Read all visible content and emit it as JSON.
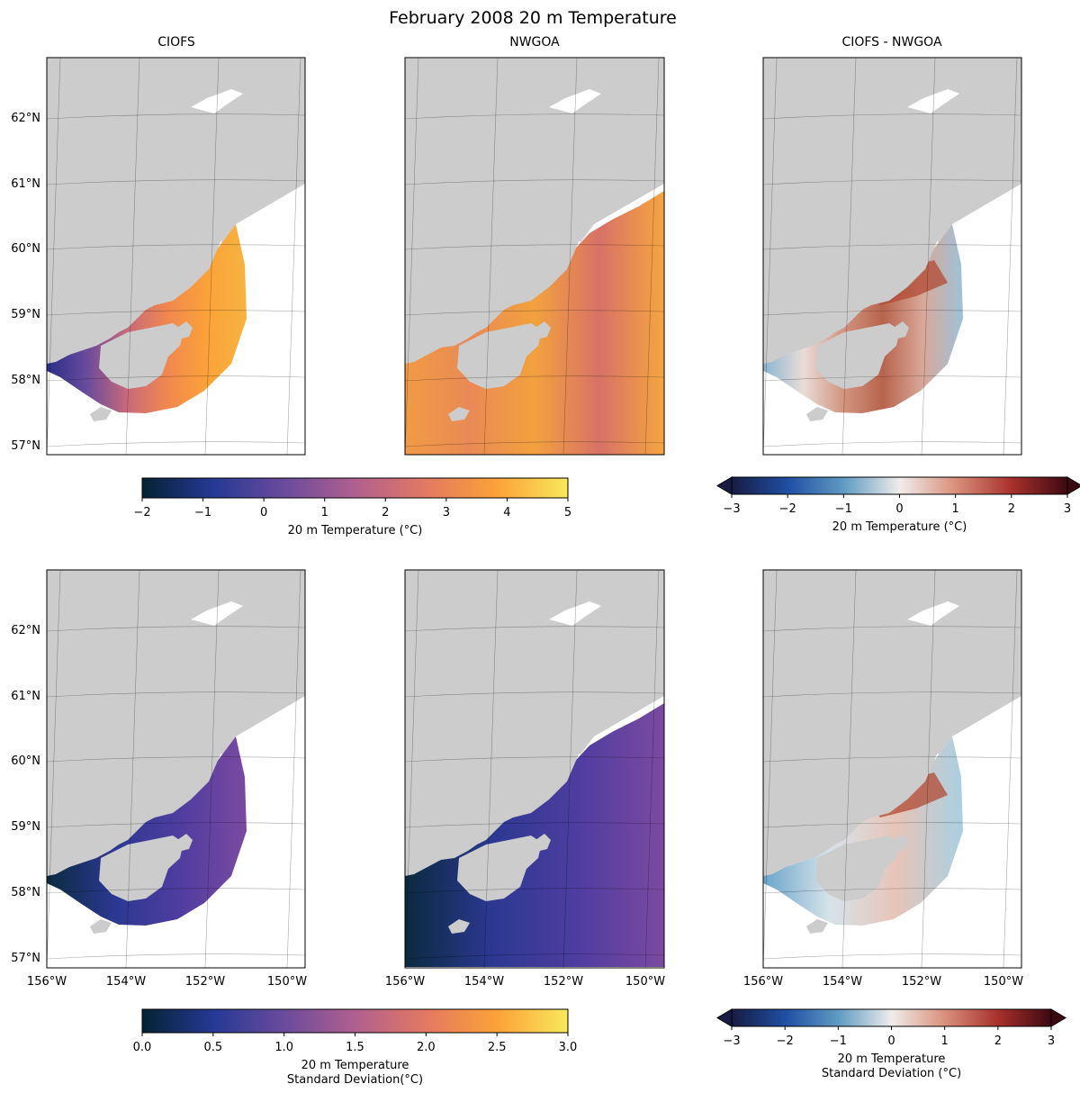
{
  "figure": {
    "title": "February 2008 20 m Temperature",
    "panel_titles": [
      "CIOFS",
      "NWGOA",
      "CIOFS - NWGOA"
    ]
  },
  "colors": {
    "land": "#cccccc",
    "thermal_ramp": [
      "#042333",
      "#253994",
      "#6a4b9c",
      "#b0608e",
      "#e37862",
      "#fba238",
      "#f9e85c"
    ],
    "balance_ramp": [
      "#181c43",
      "#1f4ea3",
      "#5e9bc2",
      "#f0eceb",
      "#d9907b",
      "#a8312b",
      "#3c0912"
    ]
  },
  "chart_data": [
    {
      "type": "heatmap",
      "title": "CIOFS",
      "field": "February 2008 mean 20 m temperature",
      "x_ticks": [],
      "y_ticks": [
        "62°N",
        "61°N",
        "60°N",
        "59°N",
        "58°N",
        "57°N"
      ],
      "xlim": [
        -156,
        -149
      ],
      "ylim": [
        56,
        62
      ],
      "grid": true,
      "colorbar_ref": 0
    },
    {
      "type": "heatmap",
      "title": "NWGOA",
      "field": "February 2008 mean 20 m temperature",
      "x_ticks": [],
      "y_ticks": [],
      "xlim": [
        -156,
        -149
      ],
      "ylim": [
        56,
        62
      ],
      "grid": true,
      "colorbar_ref": 0
    },
    {
      "type": "heatmap",
      "title": "CIOFS - NWGOA",
      "field": "difference of 20 m temperature",
      "x_ticks": [],
      "y_ticks": [],
      "xlim": [
        -156,
        -149
      ],
      "ylim": [
        56,
        62
      ],
      "grid": true,
      "colorbar_ref": 1
    },
    {
      "type": "heatmap",
      "title": "",
      "field": "20 m temperature standard deviation",
      "x_ticks": [
        "156°W",
        "154°W",
        "152°W",
        "150°W"
      ],
      "y_ticks": [
        "62°N",
        "61°N",
        "60°N",
        "59°N",
        "58°N",
        "57°N"
      ],
      "xlim": [
        -156,
        -149
      ],
      "ylim": [
        56,
        62
      ],
      "grid": true,
      "colorbar_ref": 2
    },
    {
      "type": "heatmap",
      "title": "",
      "field": "20 m temperature standard deviation",
      "x_ticks": [
        "156°W",
        "154°W",
        "152°W",
        "150°W"
      ],
      "y_ticks": [],
      "xlim": [
        -156,
        -149
      ],
      "ylim": [
        56,
        62
      ],
      "grid": true,
      "colorbar_ref": 2
    },
    {
      "type": "heatmap",
      "title": "",
      "field": "difference of 20 m temperature standard deviation",
      "x_ticks": [
        "156°W",
        "154°W",
        "152°W",
        "150°W"
      ],
      "y_ticks": [],
      "xlim": [
        -156,
        -149
      ],
      "ylim": [
        56,
        62
      ],
      "grid": true,
      "colorbar_ref": 3
    }
  ],
  "colorbars": [
    {
      "label": [
        "20 m Temperature (°C)"
      ],
      "min": -2,
      "max": 5,
      "ticks": [
        "−2",
        "−1",
        "0",
        "1",
        "2",
        "3",
        "4",
        "5"
      ],
      "cmap": "thermal",
      "extend": false
    },
    {
      "label": [
        "20 m Temperature (°C)"
      ],
      "min": -3,
      "max": 3,
      "ticks": [
        "−3",
        "−2",
        "−1",
        "0",
        "1",
        "2",
        "3"
      ],
      "cmap": "balance",
      "extend": true
    },
    {
      "label": [
        "20 m Temperature",
        "Standard Deviation(°C)"
      ],
      "min": 0,
      "max": 3,
      "ticks": [
        "0.0",
        "0.5",
        "1.0",
        "1.5",
        "2.0",
        "2.5",
        "3.0"
      ],
      "cmap": "thermal",
      "extend": false
    },
    {
      "label": [
        "20 m Temperature",
        "Standard Deviation (°C)"
      ],
      "min": -3,
      "max": 3,
      "ticks": [
        "−3",
        "−2",
        "−1",
        "0",
        "1",
        "2",
        "3"
      ],
      "cmap": "balance",
      "extend": true
    }
  ]
}
